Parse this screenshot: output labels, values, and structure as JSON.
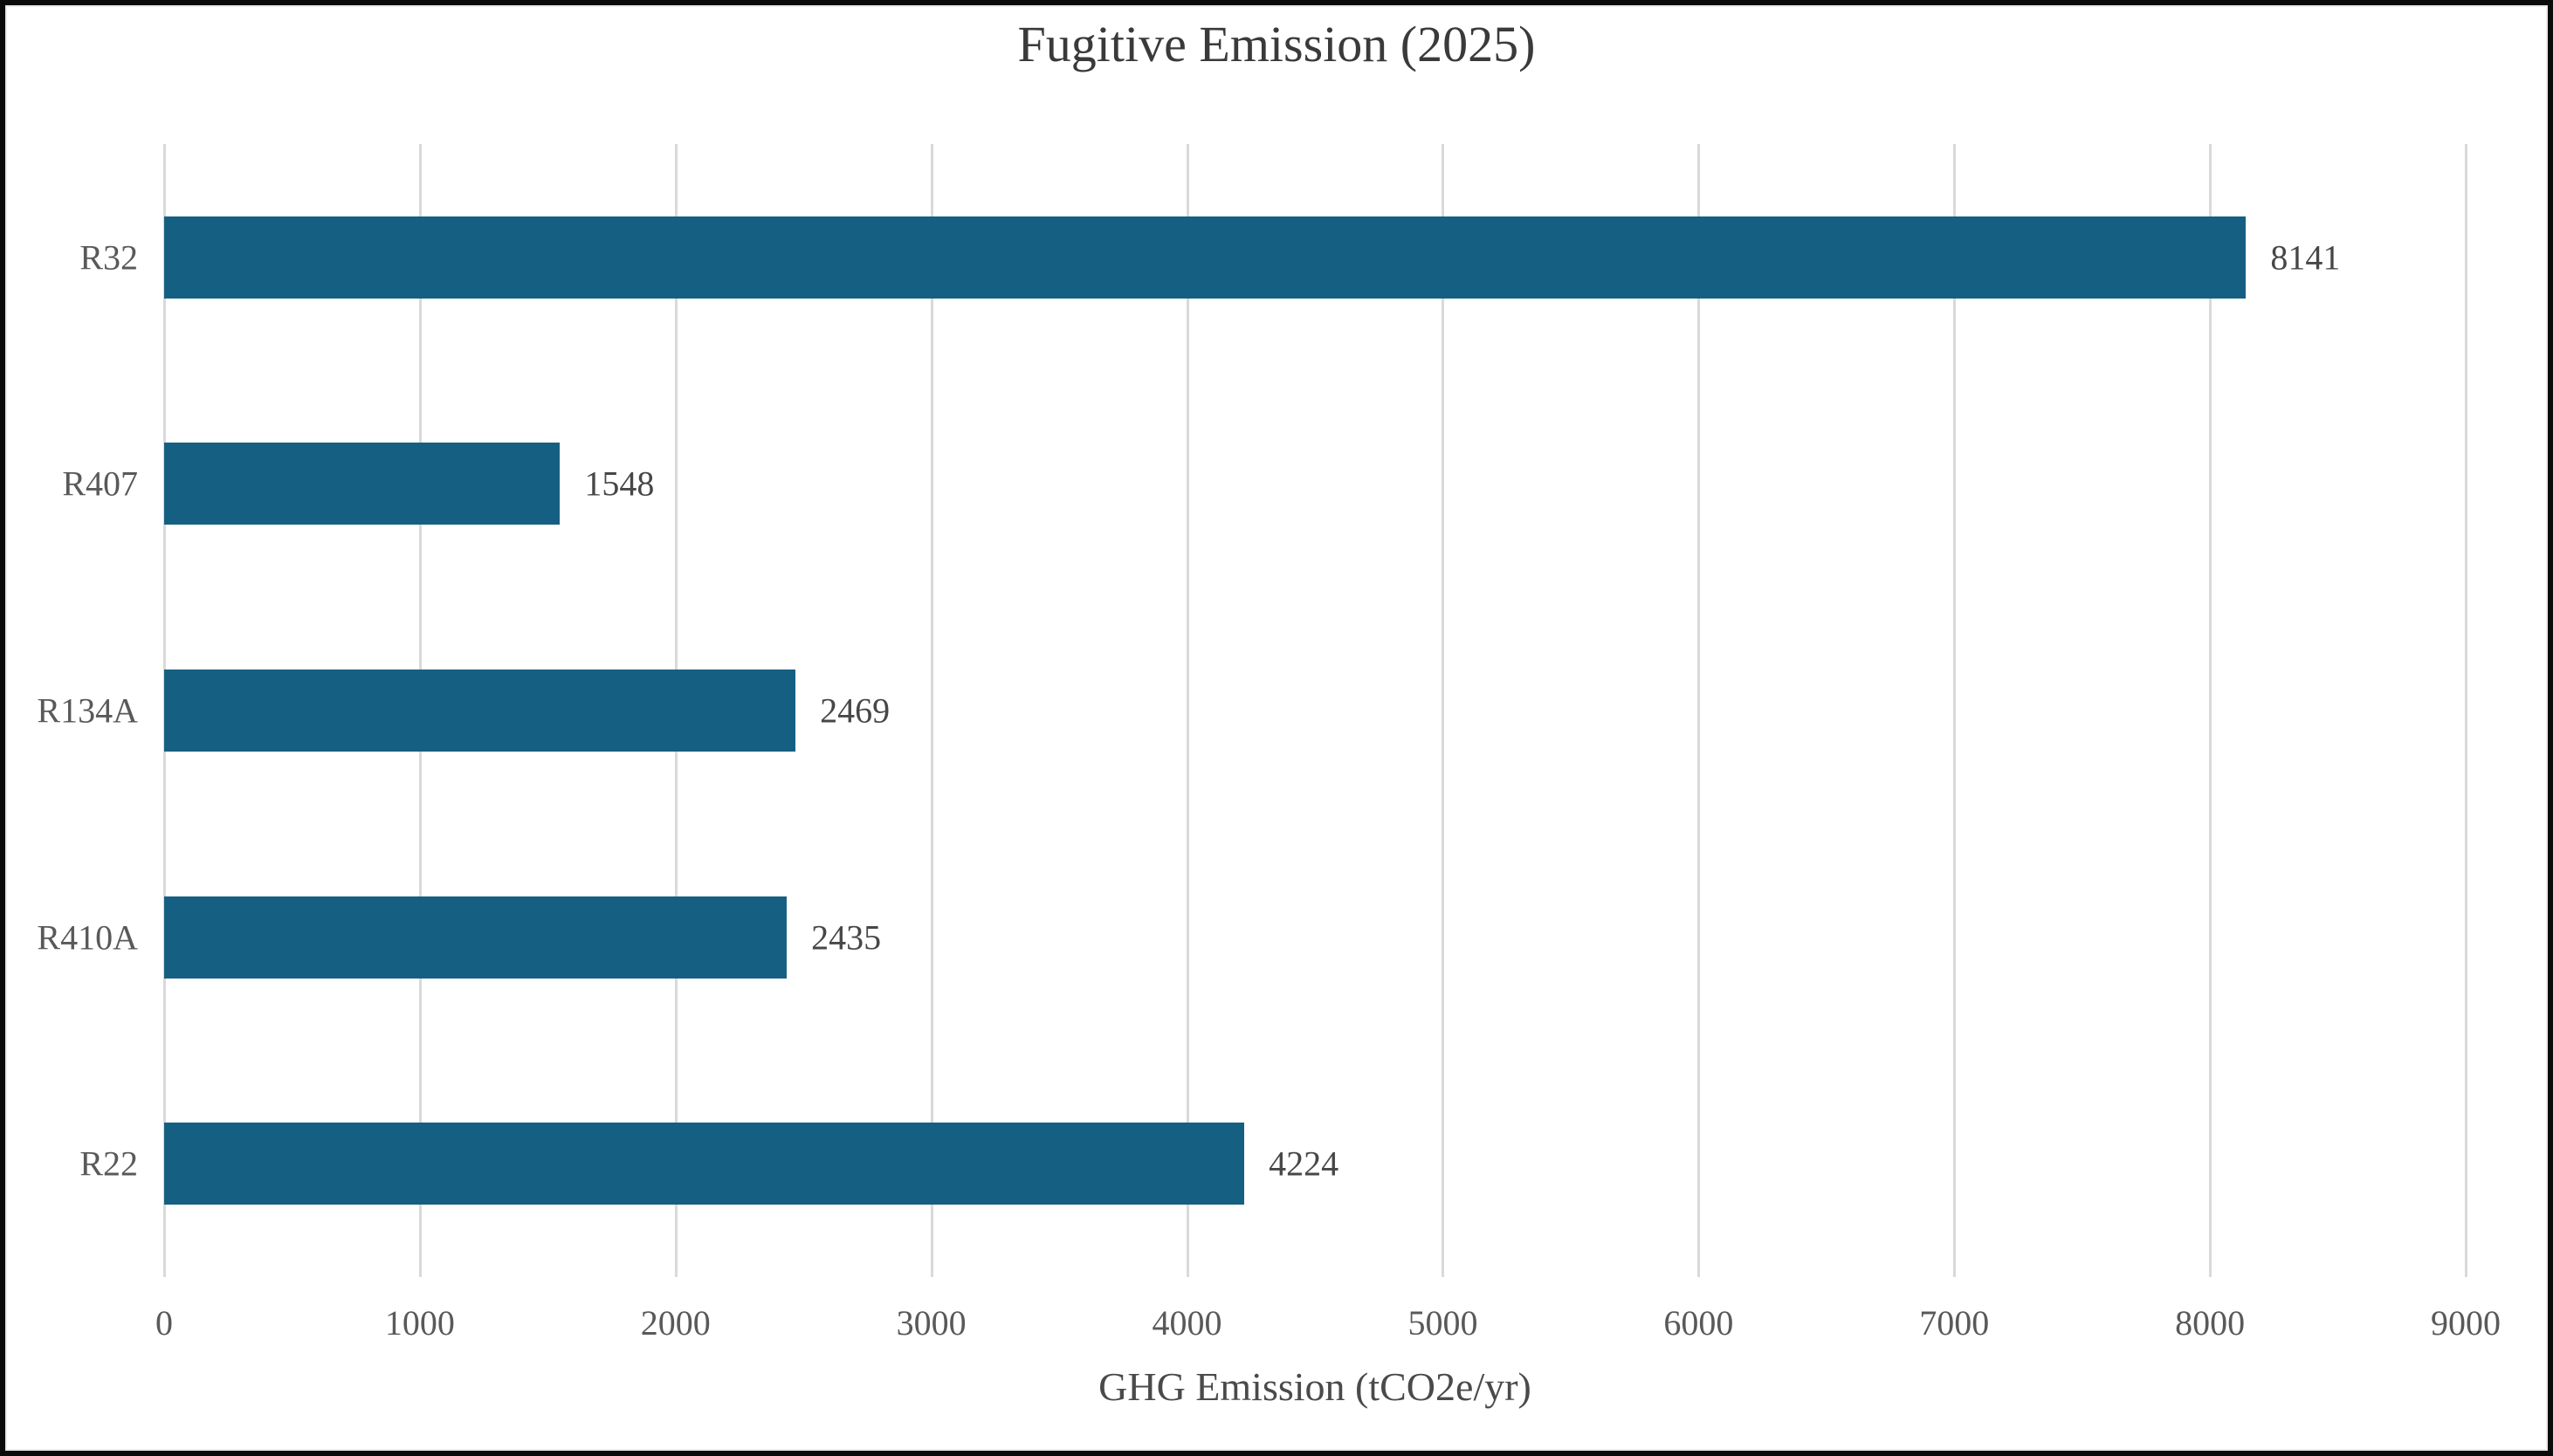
{
  "chart_data": {
    "type": "bar",
    "orientation": "horizontal",
    "title": "Fugitive Emission (2025)",
    "xlabel": "GHG Emission (tCO2e/yr)",
    "categories": [
      "R32",
      "R407",
      "R134A",
      "R410A",
      "R22"
    ],
    "values": [
      8141,
      1548,
      2469,
      2435,
      4224
    ],
    "data_labels": [
      "8141",
      "1548",
      "2469",
      "2435",
      "4224"
    ],
    "xlim": [
      0,
      9000
    ],
    "xticks": [
      "0",
      "1000",
      "2000",
      "3000",
      "4000",
      "5000",
      "6000",
      "7000",
      "8000",
      "9000"
    ],
    "grid": true,
    "legend": false,
    "colors": {
      "bar": "#156082",
      "gridline": "#d9d9d9",
      "category_label": "#595959",
      "tick_label": "#595959",
      "value_label": "#474747",
      "title": "#3a3a3a",
      "axis_title": "#4a4a4a",
      "frame": "#0b0b0b",
      "background": "#ffffff"
    }
  }
}
